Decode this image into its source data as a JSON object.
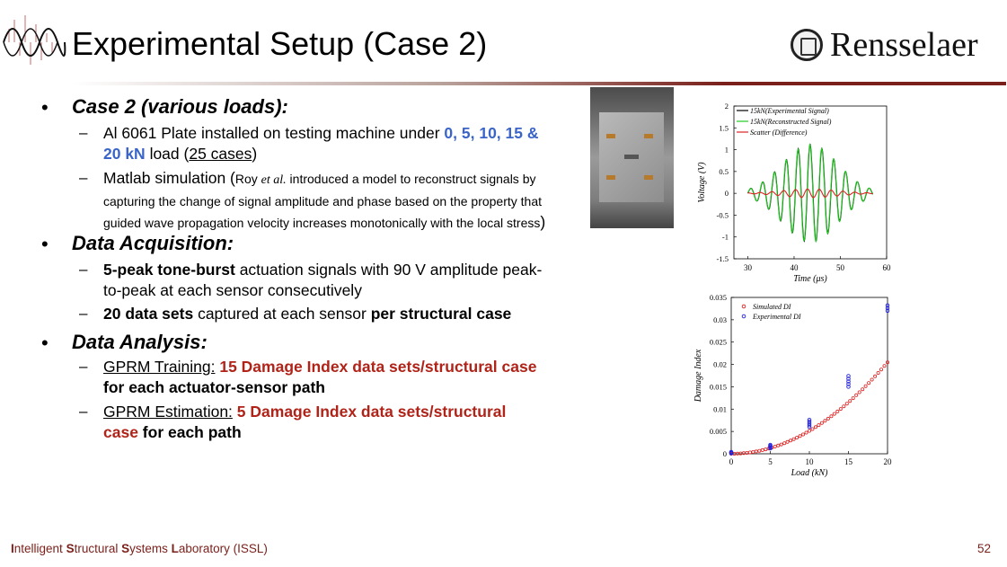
{
  "header": {
    "title": "Experimental Setup (Case 2)",
    "brand": "Rensselaer",
    "logo_icon": "waveform-icon",
    "seal_icon": "rensselaer-seal-icon"
  },
  "colors": {
    "accent_red": "#b02318",
    "accent_blue": "#3a64c8",
    "brand_maroon": "#7a1f1a"
  },
  "bullets": [
    {
      "heading": "Case 2 (various loads):",
      "items": [
        {
          "p1": "Al 6061 Plate installed on testing machine under ",
          "p2": "0, 5, 10, 15 &",
          "p3": "20 kN",
          "p4": " load (",
          "p5": "25 cases",
          "p6": ")"
        },
        {
          "p1": "Matlab",
          "p2": " simulation (",
          "p3": "Roy ",
          "p4": "et al.",
          "p5": " introduced a model to reconstruct signals by",
          "line2": "capturing the change of signal amplitude and phase based on the property that",
          "line3": "guided wave propagation velocity increases monotonically with the local stress",
          "p6": ")"
        }
      ]
    },
    {
      "heading": "Data Acquisition:",
      "items": [
        {
          "p1": "5-peak tone-burst",
          "p2": " actuation signals with 90 V amplitude peak-",
          "line2": "to-peak at each sensor consecutively"
        },
        {
          "p1": "20 data sets",
          "p2": " captured at each sensor ",
          "p3": "per structural case"
        }
      ]
    },
    {
      "heading": "Data Analysis:",
      "items": [
        {
          "p1": "GPRM Training:",
          "p2": " 15 Damage Index data sets/structural case",
          "line2": "for each actuator-sensor path"
        },
        {
          "p1": "GPRM  Estimation:",
          "p2": " 5 Damage Index data sets/structural",
          "line2a": "case",
          "line2b": " for each path"
        }
      ]
    }
  ],
  "footer": {
    "f1": "I",
    "f2": "ntelligent ",
    "f3": "S",
    "f4": "tructural ",
    "f5": "S",
    "f6": "ystems ",
    "f7": "L",
    "f8": "aboratory (ISSL)",
    "page": "52"
  },
  "chart_data": [
    {
      "type": "line",
      "xlabel": "Time (μs)",
      "ylabel": "Voltage (V)",
      "xlim": [
        27,
        60
      ],
      "ylim": [
        -1.5,
        2
      ],
      "xticks": [
        "30",
        "40",
        "50",
        "60"
      ],
      "yticks": [
        "2",
        "1.5",
        "1",
        "0.5",
        "0",
        "-0.5",
        "-1",
        "-1.5"
      ],
      "legend_position": "top-right",
      "series": [
        {
          "name": "15kN(Experimental Signal)",
          "color": "#000000",
          "signal": {
            "t0": 30,
            "t1": 57,
            "center": 43.5,
            "freq": 0.39,
            "amp": 1.12,
            "phase": 0
          }
        },
        {
          "name": "15kN(Reconstructed Signal)",
          "color": "#22cc22",
          "signal": {
            "t0": 30,
            "t1": 57,
            "center": 43.5,
            "freq": 0.39,
            "amp": 1.12,
            "phase": 0.12
          }
        },
        {
          "name": "Scatter (Difference)",
          "color": "#dd2222",
          "signal": {
            "t0": 30,
            "t1": 57,
            "center": 43.5,
            "freq": 0.39,
            "amp": 0.1,
            "phase": 1.4
          }
        }
      ]
    },
    {
      "type": "scatter",
      "xlabel": "Load (kN)",
      "ylabel": "Damage Index",
      "xlim": [
        0,
        20
      ],
      "ylim": [
        0,
        0.035
      ],
      "xticks": [
        "0",
        "5",
        "10",
        "15",
        "20"
      ],
      "yticks": [
        "0.035",
        "0.03",
        "0.025",
        "0.02",
        "0.015",
        "0.01",
        "0.005",
        "0"
      ],
      "legend_position": "top-left",
      "series": [
        {
          "name": "Simulated DI",
          "color": "#dd2222",
          "curve": {
            "coef": 5.12e-05,
            "power": 2,
            "step": 0.4
          }
        },
        {
          "name": "Experimental DI",
          "color": "#2222dd",
          "points": [
            [
              0,
              0.0001
            ],
            [
              0,
              0.0002
            ],
            [
              0,
              0.0003
            ],
            [
              0,
              0.0004
            ],
            [
              5,
              0.0012
            ],
            [
              5,
              0.0014
            ],
            [
              5,
              0.0016
            ],
            [
              5,
              0.0018
            ],
            [
              5,
              0.002
            ],
            [
              10,
              0.006
            ],
            [
              10,
              0.0064
            ],
            [
              10,
              0.0068
            ],
            [
              10,
              0.0072
            ],
            [
              10,
              0.0076
            ],
            [
              15,
              0.015
            ],
            [
              15,
              0.0156
            ],
            [
              15,
              0.0162
            ],
            [
              15,
              0.0168
            ],
            [
              15,
              0.0174
            ],
            [
              20,
              0.032
            ],
            [
              20,
              0.0326
            ],
            [
              20,
              0.0332
            ]
          ]
        }
      ]
    }
  ]
}
